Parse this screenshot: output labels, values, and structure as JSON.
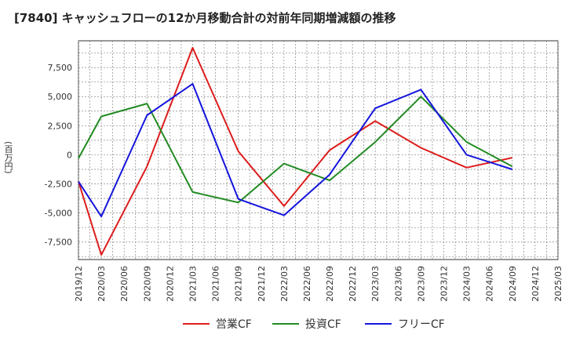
{
  "chart_data": {
    "type": "line",
    "title": "[7840]  キャッシュフローの12か月移動合計の対前年同期増減額の推移",
    "ylabel": "(百万円)",
    "xlabel": "",
    "ylim": [
      -9000,
      9800
    ],
    "yticks": [
      -7500,
      -5000,
      -2500,
      0,
      2500,
      5000,
      7500
    ],
    "ytick_labels": [
      "-7,500",
      "-5,000",
      "-2,500",
      "0",
      "2,500",
      "5,000",
      "7,500"
    ],
    "categories": [
      "2019/12",
      "2020/03",
      "2020/06",
      "2020/09",
      "2020/12",
      "2021/03",
      "2021/06",
      "2021/09",
      "2021/12",
      "2022/03",
      "2022/06",
      "2022/09",
      "2022/12",
      "2023/03",
      "2023/06",
      "2023/09",
      "2023/12",
      "2024/03",
      "2024/06",
      "2024/09",
      "2024/12",
      "2025/03"
    ],
    "series": [
      {
        "name": "営業CF",
        "color": "#dd1c1c",
        "values": [
          -2300,
          -8600,
          null,
          -1000,
          null,
          9200,
          null,
          300,
          null,
          -4400,
          null,
          400,
          null,
          2900,
          null,
          600,
          null,
          -1100,
          null,
          -250,
          null,
          null
        ]
      },
      {
        "name": "投資CF",
        "color": "#228b22",
        "values": [
          -300,
          3300,
          null,
          4400,
          null,
          -3200,
          null,
          -4100,
          null,
          -750,
          null,
          -2200,
          null,
          1100,
          null,
          5000,
          null,
          1100,
          null,
          -1000,
          null,
          null
        ]
      },
      {
        "name": "フリーCF",
        "color": "#1515dd",
        "values": [
          -2300,
          -5300,
          null,
          3400,
          null,
          6100,
          null,
          -3800,
          null,
          -5200,
          null,
          -1700,
          null,
          4000,
          null,
          5600,
          null,
          0,
          null,
          -1250,
          null,
          null
        ]
      }
    ],
    "grid": true,
    "legend": "bottom"
  }
}
